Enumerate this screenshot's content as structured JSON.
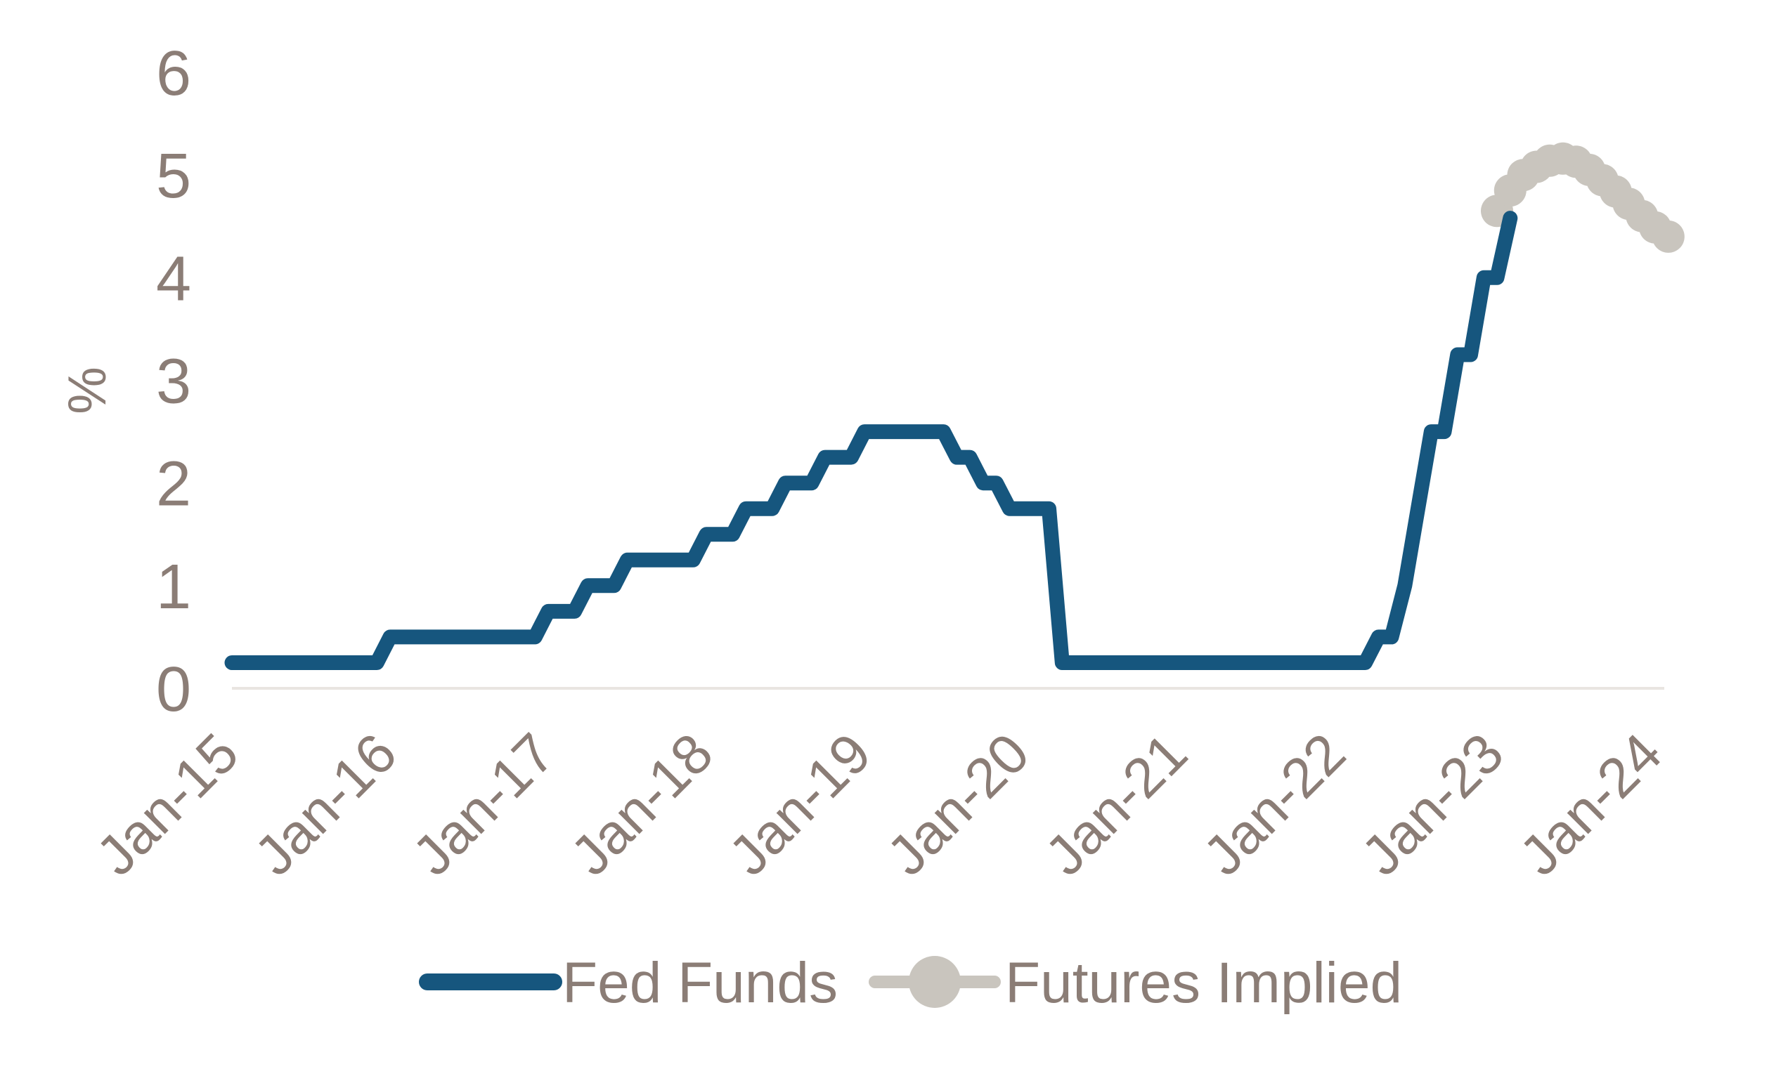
{
  "chart_data": {
    "type": "line",
    "title": "",
    "xlabel": "",
    "ylabel": "%",
    "ylim": [
      0,
      6
    ],
    "yticks": [
      0,
      1,
      2,
      3,
      4,
      5,
      6
    ],
    "x_tick_labels": [
      "Jan-15",
      "Jan-16",
      "Jan-17",
      "Jan-18",
      "Jan-19",
      "Jan-20",
      "Jan-21",
      "Jan-22",
      "Jan-23",
      "Jan-24"
    ],
    "x_range": [
      "2015-01",
      "2024-03"
    ],
    "grid": false,
    "legend_position": "bottom-center",
    "series": [
      {
        "name": "Fed Funds",
        "style": "step-line",
        "color": "#16567E",
        "points": [
          [
            "2015-01",
            0.25
          ],
          [
            "2015-12",
            0.25
          ],
          [
            "2016-01",
            0.5
          ],
          [
            "2016-12",
            0.5
          ],
          [
            "2017-01",
            0.75
          ],
          [
            "2017-03",
            0.75
          ],
          [
            "2017-04",
            1.0
          ],
          [
            "2017-06",
            1.0
          ],
          [
            "2017-07",
            1.25
          ],
          [
            "2017-12",
            1.25
          ],
          [
            "2018-01",
            1.5
          ],
          [
            "2018-03",
            1.5
          ],
          [
            "2018-04",
            1.75
          ],
          [
            "2018-06",
            1.75
          ],
          [
            "2018-07",
            2.0
          ],
          [
            "2018-09",
            2.0
          ],
          [
            "2018-10",
            2.25
          ],
          [
            "2018-12",
            2.25
          ],
          [
            "2019-01",
            2.5
          ],
          [
            "2019-07",
            2.5
          ],
          [
            "2019-08",
            2.25
          ],
          [
            "2019-09",
            2.25
          ],
          [
            "2019-10",
            2.0
          ],
          [
            "2019-11",
            2.0
          ],
          [
            "2019-12",
            1.75
          ],
          [
            "2020-03",
            1.75
          ],
          [
            "2020-04",
            0.25
          ],
          [
            "2022-03",
            0.25
          ],
          [
            "2022-04",
            0.5
          ],
          [
            "2022-05",
            0.5
          ],
          [
            "2022-06",
            1.0
          ],
          [
            "2022-07",
            1.75
          ],
          [
            "2022-08",
            2.5
          ],
          [
            "2022-09",
            2.5
          ],
          [
            "2022-10",
            3.25
          ],
          [
            "2022-11",
            3.25
          ],
          [
            "2022-12",
            4.0
          ],
          [
            "2023-01",
            4.0
          ],
          [
            "2023-02",
            4.58
          ]
        ]
      },
      {
        "name": "Futures Implied",
        "style": "line-with-circle-markers",
        "color": "#C9C5BE",
        "points": [
          [
            "2023-01",
            4.65
          ],
          [
            "2023-02",
            4.85
          ],
          [
            "2023-03",
            5.0
          ],
          [
            "2023-04",
            5.08
          ],
          [
            "2023-05",
            5.14
          ],
          [
            "2023-06",
            5.16
          ],
          [
            "2023-07",
            5.13
          ],
          [
            "2023-08",
            5.05
          ],
          [
            "2023-09",
            4.95
          ],
          [
            "2023-10",
            4.84
          ],
          [
            "2023-11",
            4.72
          ],
          [
            "2023-12",
            4.6
          ],
          [
            "2024-01",
            4.49
          ],
          [
            "2024-02",
            4.4
          ]
        ]
      }
    ]
  },
  "colors": {
    "background": "#FFFFFF",
    "text": "#8B7D76",
    "axis_line": "#E9E5E1",
    "fed_funds_line": "#16567E",
    "futures_implied": "#C9C5BE"
  }
}
